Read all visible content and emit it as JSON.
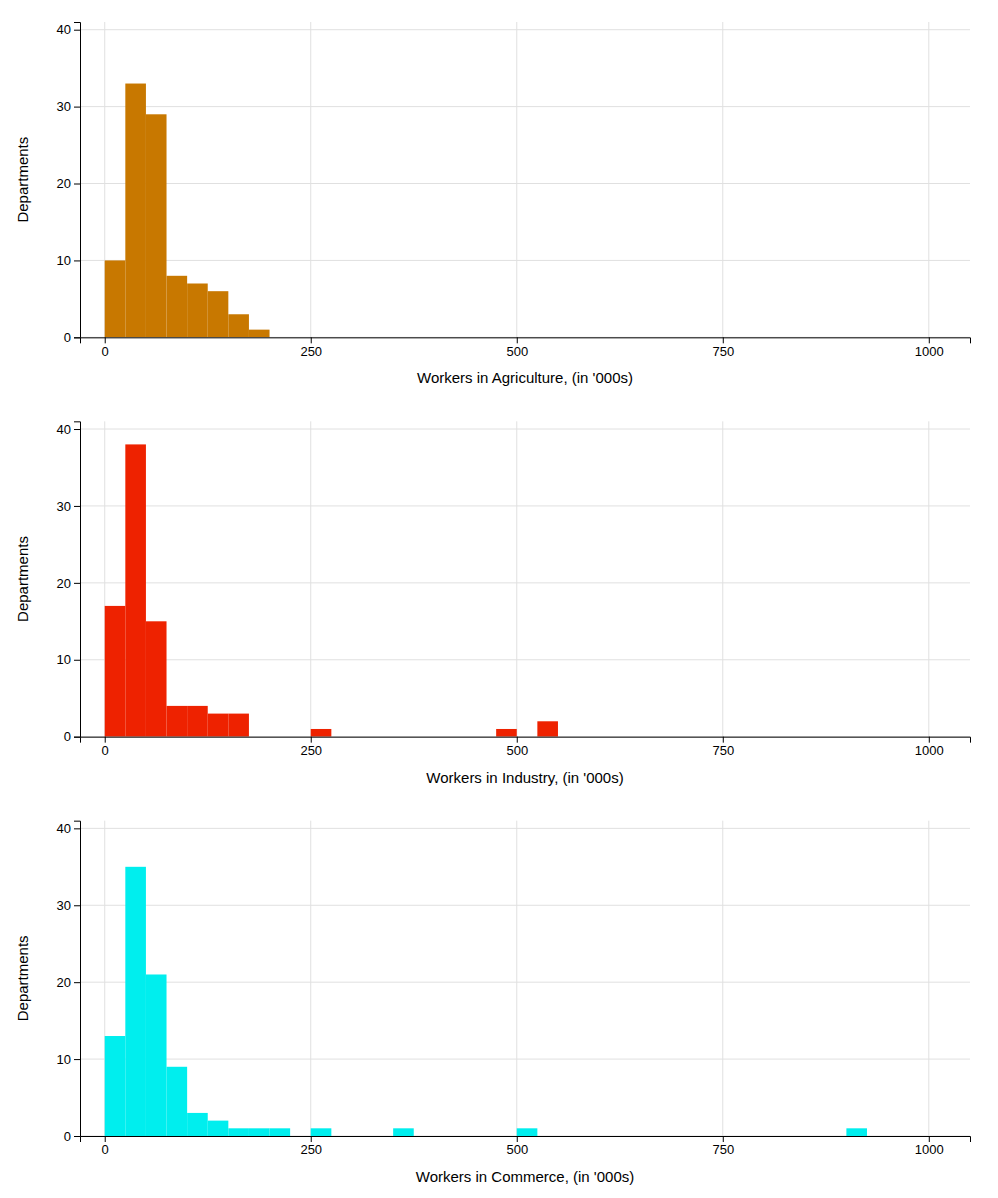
{
  "chart_data": [
    {
      "type": "histogram",
      "xlabel": "Workers in Agriculture, (in '000s)",
      "ylabel": "Departments",
      "color": "#C87800",
      "bins": [
        0,
        25,
        50,
        75,
        100,
        125,
        150,
        175,
        200
      ],
      "values": [
        10,
        33,
        29,
        8,
        7,
        6,
        3,
        1
      ],
      "xlim": [
        -30,
        1050
      ],
      "ylim": [
        0,
        41
      ],
      "xticks": [
        0,
        250,
        500,
        750,
        1000
      ],
      "yticks": [
        0,
        10,
        20,
        30,
        40
      ],
      "grid": true
    },
    {
      "type": "histogram",
      "xlabel": "Workers in Industry, (in '000s)",
      "ylabel": "Departments",
      "color": "#EE2200",
      "bins": [
        0,
        25,
        50,
        75,
        100,
        125,
        150,
        175,
        200,
        225,
        250,
        275,
        300,
        325,
        350,
        375,
        400,
        425,
        450,
        475,
        500,
        525,
        550,
        575,
        600
      ],
      "values": [
        17,
        38,
        15,
        4,
        4,
        3,
        3,
        0,
        0,
        0,
        1,
        0,
        0,
        0,
        0,
        0,
        0,
        0,
        0,
        1,
        0,
        2,
        0,
        0
      ],
      "xlim": [
        -30,
        1050
      ],
      "ylim": [
        0,
        41
      ],
      "xticks": [
        0,
        250,
        500,
        750,
        1000
      ],
      "yticks": [
        0,
        10,
        20,
        30,
        40
      ],
      "grid": true
    },
    {
      "type": "histogram",
      "xlabel": "Workers in Commerce, (in '000s)",
      "ylabel": "Departments",
      "color": "#00EEEE",
      "bins": [
        0,
        25,
        50,
        75,
        100,
        125,
        150,
        175,
        200,
        225,
        250,
        275,
        300,
        325,
        350,
        375,
        400,
        425,
        450,
        475,
        500,
        525,
        550,
        575,
        600,
        625,
        650,
        675,
        700,
        725,
        750,
        775,
        800,
        825,
        850,
        875,
        900,
        925,
        950
      ],
      "values": [
        13,
        35,
        21,
        9,
        3,
        2,
        1,
        1,
        1,
        0,
        1,
        0,
        0,
        0,
        1,
        0,
        0,
        0,
        0,
        0,
        1,
        0,
        0,
        0,
        0,
        0,
        0,
        0,
        0,
        0,
        0,
        0,
        0,
        0,
        0,
        0,
        1,
        0
      ],
      "xlim": [
        -30,
        1050
      ],
      "ylim": [
        0,
        41
      ],
      "xticks": [
        0,
        250,
        500,
        750,
        1000
      ],
      "yticks": [
        0,
        10,
        20,
        30,
        40
      ],
      "grid": true
    }
  ]
}
